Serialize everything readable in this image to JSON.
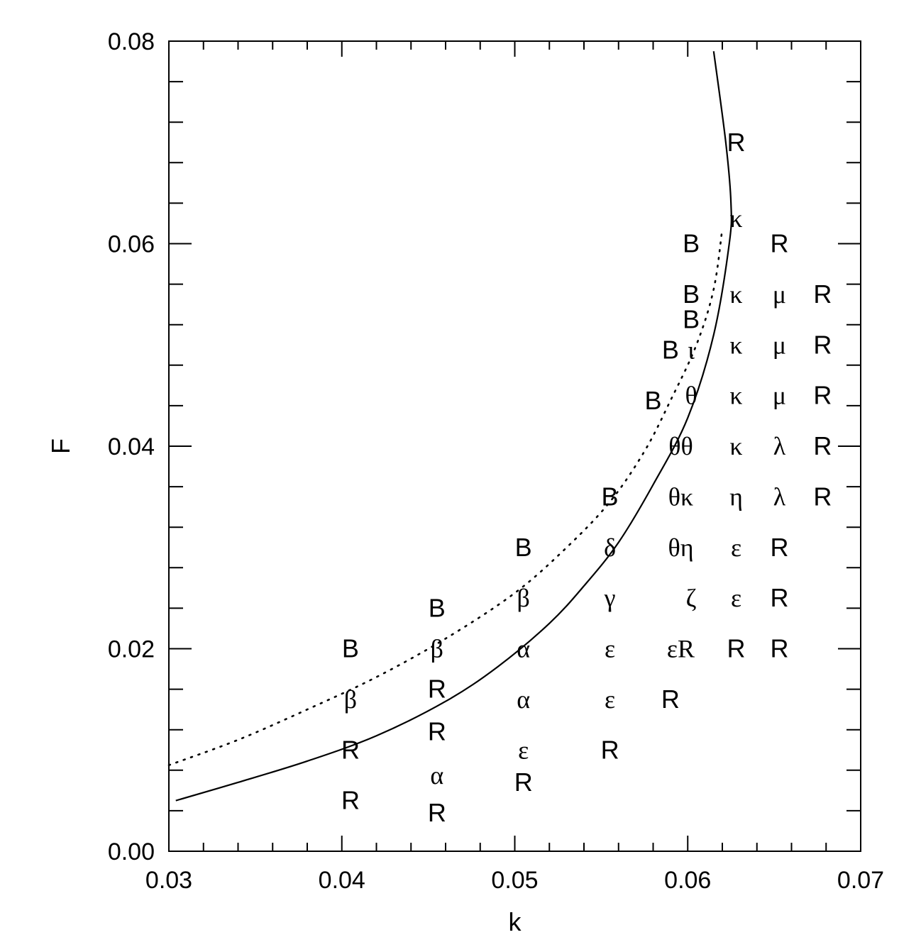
{
  "chart_data": {
    "type": "scatter",
    "title": "",
    "xlabel": "k",
    "ylabel": "F",
    "xlim": [
      0.03,
      0.07
    ],
    "ylim": [
      0.0,
      0.08
    ],
    "x_tick_labels": [
      "0.03",
      "0.04",
      "0.05",
      "0.06",
      "0.07"
    ],
    "y_tick_labels": [
      "0.00",
      "0.02",
      "0.04",
      "0.06",
      "0.08"
    ],
    "grid": false,
    "colors": {
      "ink": "#000000",
      "background": "#ffffff"
    },
    "lines": [
      {
        "style": "solid",
        "points": [
          [
            0.0304,
            0.005
          ],
          [
            0.034,
            0.0068
          ],
          [
            0.038,
            0.0089
          ],
          [
            0.042,
            0.0114
          ],
          [
            0.046,
            0.0148
          ],
          [
            0.049,
            0.0182
          ],
          [
            0.052,
            0.0225
          ],
          [
            0.054,
            0.0262
          ],
          [
            0.056,
            0.0305
          ],
          [
            0.058,
            0.0362
          ],
          [
            0.06,
            0.0428
          ],
          [
            0.0615,
            0.051
          ],
          [
            0.0624,
            0.06
          ],
          [
            0.0625,
            0.064
          ],
          [
            0.0622,
            0.07
          ],
          [
            0.0615,
            0.079
          ]
        ]
      },
      {
        "style": "dotted",
        "points": [
          [
            0.03,
            0.0085
          ],
          [
            0.034,
            0.011
          ],
          [
            0.038,
            0.014
          ],
          [
            0.042,
            0.0172
          ],
          [
            0.046,
            0.021
          ],
          [
            0.05,
            0.0255
          ],
          [
            0.053,
            0.03
          ],
          [
            0.0555,
            0.0345
          ],
          [
            0.0575,
            0.0395
          ],
          [
            0.059,
            0.0445
          ],
          [
            0.0605,
            0.05
          ],
          [
            0.0615,
            0.0555
          ],
          [
            0.062,
            0.0615
          ]
        ]
      }
    ],
    "annotations": [
      {
        "text": "B",
        "x": 0.0405,
        "y": 0.02
      },
      {
        "text": "β",
        "x": 0.0405,
        "y": 0.015
      },
      {
        "text": "R",
        "x": 0.0405,
        "y": 0.01
      },
      {
        "text": "R",
        "x": 0.0405,
        "y": 0.005
      },
      {
        "text": "B",
        "x": 0.0455,
        "y": 0.024
      },
      {
        "text": "β",
        "x": 0.0455,
        "y": 0.02
      },
      {
        "text": "R",
        "x": 0.0455,
        "y": 0.016
      },
      {
        "text": "R",
        "x": 0.0455,
        "y": 0.0118
      },
      {
        "text": "α",
        "x": 0.0455,
        "y": 0.0075
      },
      {
        "text": "R",
        "x": 0.0455,
        "y": 0.0038
      },
      {
        "text": "B",
        "x": 0.0505,
        "y": 0.03
      },
      {
        "text": "β",
        "x": 0.0505,
        "y": 0.025
      },
      {
        "text": "α",
        "x": 0.0505,
        "y": 0.02
      },
      {
        "text": "α",
        "x": 0.0505,
        "y": 0.015
      },
      {
        "text": "ε",
        "x": 0.0505,
        "y": 0.01
      },
      {
        "text": "R",
        "x": 0.0505,
        "y": 0.0068
      },
      {
        "text": "B",
        "x": 0.0555,
        "y": 0.035
      },
      {
        "text": "δ",
        "x": 0.0555,
        "y": 0.03
      },
      {
        "text": "γ",
        "x": 0.0555,
        "y": 0.025
      },
      {
        "text": "ε",
        "x": 0.0555,
        "y": 0.02
      },
      {
        "text": "ε",
        "x": 0.0555,
        "y": 0.015
      },
      {
        "text": "R",
        "x": 0.0555,
        "y": 0.01
      },
      {
        "text": "B",
        "x": 0.058,
        "y": 0.0445
      },
      {
        "text": "B",
        "x": 0.059,
        "y": 0.0495
      },
      {
        "text": "ι",
        "x": 0.0602,
        "y": 0.0495
      },
      {
        "text": "B",
        "x": 0.0602,
        "y": 0.0525
      },
      {
        "text": "B",
        "x": 0.0602,
        "y": 0.055
      },
      {
        "text": "B",
        "x": 0.0602,
        "y": 0.06
      },
      {
        "text": "θ",
        "x": 0.0602,
        "y": 0.045
      },
      {
        "text": "θθ",
        "x": 0.0596,
        "y": 0.04
      },
      {
        "text": "θκ",
        "x": 0.0596,
        "y": 0.035
      },
      {
        "text": "θη",
        "x": 0.0596,
        "y": 0.03
      },
      {
        "text": "ζ",
        "x": 0.0602,
        "y": 0.025
      },
      {
        "text": "εR",
        "x": 0.0596,
        "y": 0.02
      },
      {
        "text": "R",
        "x": 0.059,
        "y": 0.015
      },
      {
        "text": "R",
        "x": 0.0628,
        "y": 0.07
      },
      {
        "text": "κ",
        "x": 0.0628,
        "y": 0.0625
      },
      {
        "text": "κ",
        "x": 0.0628,
        "y": 0.055
      },
      {
        "text": "κ",
        "x": 0.0628,
        "y": 0.05
      },
      {
        "text": "κ",
        "x": 0.0628,
        "y": 0.045
      },
      {
        "text": "κ",
        "x": 0.0628,
        "y": 0.04
      },
      {
        "text": "η",
        "x": 0.0628,
        "y": 0.035
      },
      {
        "text": "ε",
        "x": 0.0628,
        "y": 0.03
      },
      {
        "text": "ε",
        "x": 0.0628,
        "y": 0.025
      },
      {
        "text": "R",
        "x": 0.0628,
        "y": 0.02
      },
      {
        "text": "R",
        "x": 0.0653,
        "y": 0.06
      },
      {
        "text": "μ",
        "x": 0.0653,
        "y": 0.055
      },
      {
        "text": "μ",
        "x": 0.0653,
        "y": 0.05
      },
      {
        "text": "μ",
        "x": 0.0653,
        "y": 0.045
      },
      {
        "text": "λ",
        "x": 0.0653,
        "y": 0.04
      },
      {
        "text": "λ",
        "x": 0.0653,
        "y": 0.035
      },
      {
        "text": "R",
        "x": 0.0653,
        "y": 0.03
      },
      {
        "text": "R",
        "x": 0.0653,
        "y": 0.025
      },
      {
        "text": "R",
        "x": 0.0653,
        "y": 0.02
      },
      {
        "text": "R",
        "x": 0.0678,
        "y": 0.055
      },
      {
        "text": "R",
        "x": 0.0678,
        "y": 0.05
      },
      {
        "text": "R",
        "x": 0.0678,
        "y": 0.045
      },
      {
        "text": "R",
        "x": 0.0678,
        "y": 0.04
      },
      {
        "text": "R",
        "x": 0.0678,
        "y": 0.035
      }
    ]
  }
}
